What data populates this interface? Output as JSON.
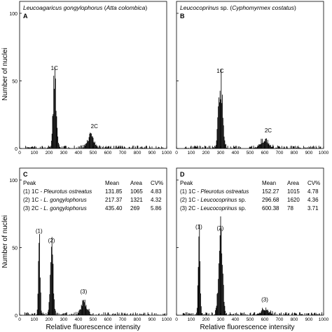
{
  "figure": {
    "y_axis_label": "Number of nuclei",
    "x_axis_label": "Relative fluorescence intensity"
  },
  "chart_data": [
    {
      "type": "histogram",
      "panel": "A",
      "title_parts": [
        {
          "text": "Leucoagaricus gongylophorus",
          "italic": true
        },
        {
          "text": " (",
          "italic": false
        },
        {
          "text": "Atta colombica",
          "italic": true
        },
        {
          "text": ")",
          "italic": false
        }
      ],
      "xlim": [
        0,
        1000
      ],
      "ylim": [
        0,
        100
      ],
      "x_ticks": [
        "0",
        "100",
        "200",
        "300",
        "400",
        "500",
        "600",
        "700",
        "800",
        "900",
        "1000"
      ],
      "y_ticks": [
        "0",
        "50",
        "100"
      ],
      "show_y_tick_labels": true,
      "peaks": [
        {
          "label": "1C",
          "center": 237,
          "height": 52
        },
        {
          "label": "2C",
          "center": 480,
          "height": 9
        }
      ],
      "table": null
    },
    {
      "type": "histogram",
      "panel": "B",
      "title_parts": [
        {
          "text": "Leucocoprinus",
          "italic": true
        },
        {
          "text": " sp. (",
          "italic": false
        },
        {
          "text": "Cyphomyrmex costatus",
          "italic": true
        },
        {
          "text": ")",
          "italic": false
        }
      ],
      "xlim": [
        0,
        1000
      ],
      "ylim": [
        0,
        100
      ],
      "x_ticks": [
        "0",
        "100",
        "200",
        "300",
        "400",
        "500",
        "600",
        "700",
        "800",
        "900",
        "1000"
      ],
      "y_ticks": [
        "0",
        "50",
        "100"
      ],
      "show_y_tick_labels": false,
      "peaks": [
        {
          "label": "1C",
          "center": 297,
          "height": 50
        },
        {
          "label": "2C",
          "center": 595,
          "height": 6
        }
      ],
      "table": null
    },
    {
      "type": "histogram",
      "panel": "C",
      "title_parts": [],
      "xlim": [
        0,
        1000
      ],
      "ylim": [
        0,
        100
      ],
      "x_ticks": [
        "0",
        "100",
        "200",
        "300",
        "400",
        "500",
        "600",
        "700",
        "800",
        "900",
        "1000"
      ],
      "y_ticks": [
        "0",
        "50",
        "100"
      ],
      "show_y_tick_labels": true,
      "peaks": [
        {
          "label": "(1)",
          "center": 132,
          "height": 55
        },
        {
          "label": "(2)",
          "center": 217,
          "height": 48
        },
        {
          "label": "(3)",
          "center": 435,
          "height": 10
        }
      ],
      "table": {
        "headers": [
          "Peak",
          "Mean",
          "Area",
          "CV%"
        ],
        "rows": [
          {
            "peak": [
              {
                "text": "(1) 1C - ",
                "italic": false
              },
              {
                "text": "Pleurotus ostreatus",
                "italic": true
              }
            ],
            "mean": "131.85",
            "area": "1065",
            "cv": "4.83"
          },
          {
            "peak": [
              {
                "text": "(2) 1C - ",
                "italic": false
              },
              {
                "text": "L. gongylophorus",
                "italic": true
              }
            ],
            "mean": "217.37",
            "area": "1321",
            "cv": "4.32"
          },
          {
            "peak": [
              {
                "text": "(3) 2C - ",
                "italic": false
              },
              {
                "text": "L. gongylophorus",
                "italic": true
              }
            ],
            "mean": "435.40",
            "area": "269",
            "cv": "5.86"
          }
        ]
      }
    },
    {
      "type": "histogram",
      "panel": "D",
      "title_parts": [],
      "xlim": [
        0,
        1000
      ],
      "ylim": [
        0,
        100
      ],
      "x_ticks": [
        "0",
        "100",
        "200",
        "300",
        "400",
        "500",
        "600",
        "700",
        "800",
        "900",
        "1000"
      ],
      "y_ticks": [
        "0",
        "50",
        "100"
      ],
      "show_y_tick_labels": false,
      "peaks": [
        {
          "label": "(1)",
          "center": 152,
          "height": 58
        },
        {
          "label": "(2)",
          "center": 297,
          "height": 57
        },
        {
          "label": "(3)",
          "center": 600,
          "height": 4
        }
      ],
      "table": {
        "headers": [
          "Peak",
          "Mean",
          "Area",
          "CV%"
        ],
        "rows": [
          {
            "peak": [
              {
                "text": "(1) 1C - ",
                "italic": false
              },
              {
                "text": "Pleurotus ostreatus",
                "italic": true
              }
            ],
            "mean": "152.27",
            "area": "1015",
            "cv": "4.78"
          },
          {
            "peak": [
              {
                "text": "(2) 1C - ",
                "italic": false
              },
              {
                "text": "Leucocoprinus",
                "italic": true
              },
              {
                "text": " sp.",
                "italic": false
              }
            ],
            "mean": "296.68",
            "area": "1620",
            "cv": "4.36"
          },
          {
            "peak": [
              {
                "text": "(3) 2C - ",
                "italic": false
              },
              {
                "text": "Leucocoprinus",
                "italic": true
              },
              {
                "text": " sp.",
                "italic": false
              }
            ],
            "mean": "600.38",
            "area": "78",
            "cv": "3.71"
          }
        ]
      }
    }
  ]
}
